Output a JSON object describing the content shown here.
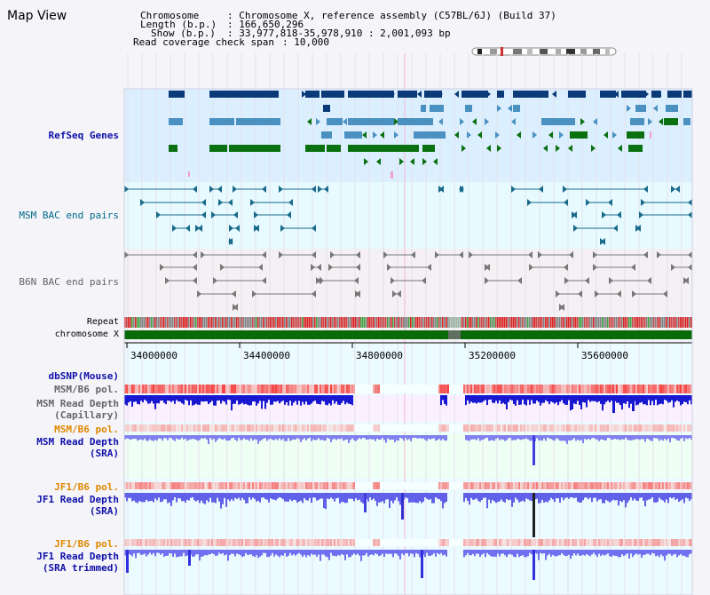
{
  "title": "Map View",
  "info": {
    "chromosome_key": "Chromosome",
    "chromosome_value": ": Chromosome X, reference assembly (C57BL/6J) (Build 37)",
    "length_key": "Length (b.p.)",
    "length_value": ": 166,650,296",
    "show_key": "Show (b.p.)",
    "show_value": ": 33,977,818-35,978,910 : 2,001,093 bp",
    "span_key": "Read coverage check span",
    "span_value": ": 10,000"
  },
  "tracks": {
    "refseq": "RefSeq Genes",
    "msm_bac": "MSM BAC end pairs",
    "b6n_bac": "B6N BAC end pairs",
    "repeat": "Repeat",
    "chromosome": "chromosome X",
    "dbsnp": "dbSNP(Mouse)",
    "msm_pol_1": "MSM/B6 pol.",
    "msm_depth_cap_1": "MSM Read Depth",
    "msm_depth_cap_2": "(Capillary)",
    "msm_pol_2": "MSM/B6 pol.",
    "msm_depth_sra_1": "MSM Read Depth",
    "msm_depth_sra_2": "(SRA)",
    "jf1_pol_1": "JF1/B6 pol.",
    "jf1_depth_sra_1": "JF1 Read Depth",
    "jf1_depth_sra_2": "(SRA)",
    "jf1_pol_2": "JF1/B6 pol.",
    "jf1_depth_trim_1": "JF1 Read Depth",
    "jf1_depth_trim_2": "(SRA trimmed)"
  },
  "axis_ticks": [
    "34000000",
    "34400000",
    "34800000",
    "35200000",
    "35600000"
  ],
  "colors": {
    "refseq_bg": "#dcefff",
    "msm_bg": "#e6faff",
    "b6n_bg": "#f4f0f4",
    "gene_dark": "#0a3a78",
    "gene_mid": "#4a90c0",
    "gene_green": "#0a7010",
    "chromosome": "#0a6a0a",
    "label_blue": "#1010a8",
    "label_orange": "#e08800",
    "label_teal": "#006a8a",
    "label_gray": "#666666"
  }
}
